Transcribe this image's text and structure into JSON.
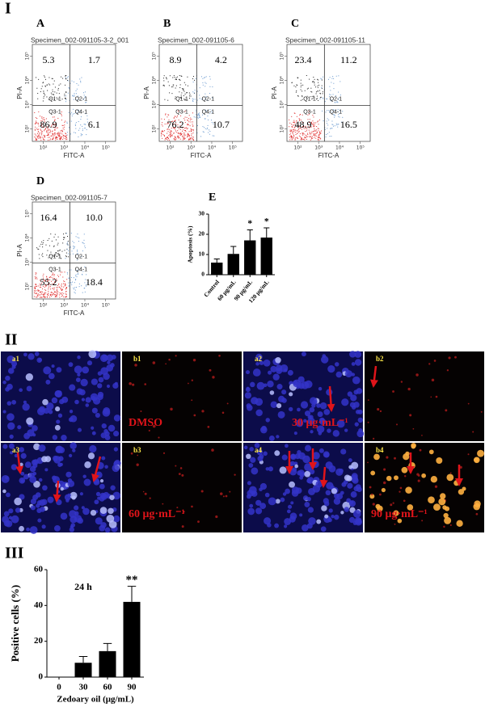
{
  "figure": {
    "sections": [
      "I",
      "II",
      "III"
    ],
    "flow_axes": {
      "xlabel": "FITC-A",
      "ylabel": "PI-A",
      "scale": "log",
      "xlim": [
        30,
        300000
      ],
      "ylim": [
        30,
        300000
      ],
      "xticks": [
        {
          "value": 100,
          "label": "10²"
        },
        {
          "value": 1000,
          "label": "10³"
        },
        {
          "value": 10000,
          "label": "10⁴"
        },
        {
          "value": 100000,
          "label": "10⁵"
        }
      ],
      "yticks": [
        {
          "value": 100,
          "label": "10²"
        },
        {
          "value": 1000,
          "label": "10³"
        },
        {
          "value": 10000,
          "label": "10⁴"
        },
        {
          "value": 100000,
          "label": "10⁵"
        }
      ],
      "gates": [
        "Q1-1",
        "Q2-1",
        "Q3-1",
        "Q4-1"
      ]
    },
    "flow_panels": [
      {
        "letter": "A",
        "specimen": "Specimen_002-091105-3-2_001",
        "quadrants": [
          5.3,
          1.7,
          86.9,
          6.1
        ]
      },
      {
        "letter": "B",
        "specimen": "Specimen_002-091105-6",
        "quadrants": [
          8.9,
          4.2,
          76.2,
          10.7
        ]
      },
      {
        "letter": "C",
        "specimen": "Specimen_002-091105-11",
        "quadrants": [
          23.4,
          11.2,
          48.9,
          16.5
        ]
      },
      {
        "letter": "D",
        "specimen": "Specimen_002-091105-7",
        "quadrants": [
          16.4,
          10.0,
          55.2,
          18.4
        ],
        "value_labels": [
          "16.4",
          "10.0",
          "55.2",
          "18.4"
        ]
      }
    ],
    "micrographs": [
      {
        "label": "a1"
      },
      {
        "label": "b1",
        "caption": "DMSO"
      },
      {
        "label": "a2",
        "caption": "30 μg·mL⁻¹"
      },
      {
        "label": "b2"
      },
      {
        "label": "a3"
      },
      {
        "label": "b3",
        "caption": "60 μg·mL⁻¹"
      },
      {
        "label": "a4"
      },
      {
        "label": "b4",
        "caption": "90 μg·mL⁻¹"
      }
    ]
  },
  "chart_data": [
    {
      "type": "bar",
      "letter": "E",
      "ylabel": "Apoptosis (%)",
      "categories": [
        "Control",
        "60 μg/mL",
        "90 μg/mL",
        "120 μg/mL"
      ],
      "values": [
        6,
        10.3,
        17,
        18.4
      ],
      "errors": [
        1.8,
        3.7,
        5.2,
        4.8
      ],
      "markers": [
        null,
        null,
        "*",
        "*"
      ],
      "color": "#000000",
      "ylim": [
        0,
        30
      ],
      "yticks": [
        0,
        10,
        20,
        30
      ]
    },
    {
      "type": "bar",
      "ylabel": "Positive cells (%)",
      "xlabel": "Zedoary oil (μg/mL)",
      "annotation": "24 h",
      "categories": [
        "0",
        "30",
        "60",
        "90"
      ],
      "values": [
        0,
        8,
        14.5,
        42
      ],
      "errors": [
        0,
        3.5,
        4.3,
        8.7
      ],
      "markers": [
        null,
        null,
        null,
        "**"
      ],
      "color": "#000000",
      "ylim": [
        0,
        60
      ],
      "yticks": [
        0,
        20,
        40,
        60
      ]
    }
  ]
}
